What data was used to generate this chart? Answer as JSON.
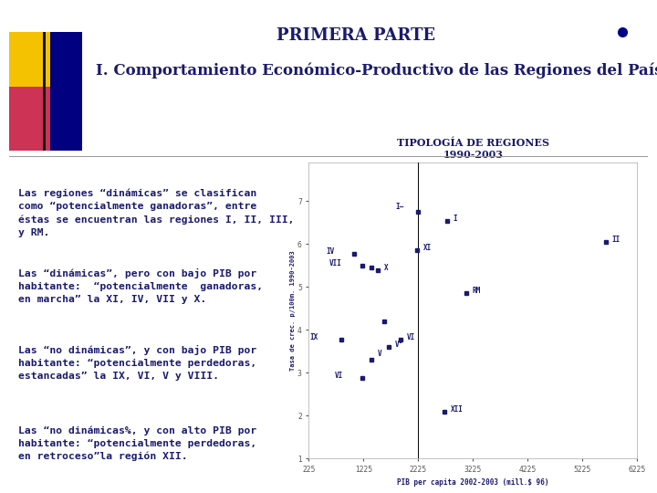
{
  "title_main": "PRIMERA PARTE",
  "title_sub": "I. Comportamiento Económico-Productivo de las Regiones del País",
  "scatter_title_line1": "TIPOLOGÍA DE REGIONES",
  "scatter_title_line2": "1990-2003",
  "xlabel": "PIB per capita 2002-2003 (mill.$ 96)",
  "ylabel": "Tasa de crec. p/100m. 1990-2003",
  "xlim": [
    225,
    6225
  ],
  "ylim": [
    1.0,
    7.9
  ],
  "xticks": [
    225,
    1225,
    2225,
    3225,
    4225,
    5225,
    6225
  ],
  "yticks": [
    1.0,
    2.0,
    3.0,
    4.0,
    5.0,
    6.0,
    7.0
  ],
  "vline_x": 2225,
  "dot_color": "#1a1a6e",
  "text_color": "#1a1a6e",
  "background_color": "#ffffff",
  "text_paragraphs": [
    "Las regiones “dinámicas” se clasifican\ncomo “potencialmente ganadoras”, entre\néstas se encuentran las regiones I, II, III,\ny RM.",
    "Las “dinámicas”, pero con bajo PIB por\nhabitante:  “potencialmente  ganadoras,\nen marcha” la XI, IV, VII y X.",
    "Las “no dinámicas”, y con bajo PIB por\nhabitante: “potencialmente perdedoras,\nestancadas” la IX, VI, V y VIII.",
    "Las “no dinámicas%, y con alto PIB por\nhabitante: “potencialmente perdedoras,\nen retroceso”la región XII."
  ],
  "scatter_data": [
    [
      2220,
      6.75,
      "I–",
      -18,
      2
    ],
    [
      2750,
      6.55,
      "I",
      5,
      0
    ],
    [
      5650,
      6.05,
      "II",
      5,
      0
    ],
    [
      2200,
      5.85,
      "XI",
      5,
      0
    ],
    [
      1050,
      5.78,
      "IV",
      -22,
      0
    ],
    [
      1200,
      5.5,
      "VII",
      -26,
      0
    ],
    [
      1370,
      5.45,
      "",
      5,
      0
    ],
    [
      1480,
      5.4,
      "X",
      5,
      0
    ],
    [
      3100,
      4.85,
      "RM",
      5,
      0
    ],
    [
      1600,
      4.2,
      "",
      5,
      0
    ],
    [
      820,
      3.78,
      "IX",
      -25,
      0
    ],
    [
      1900,
      3.78,
      "VI",
      5,
      0
    ],
    [
      1370,
      3.3,
      "V",
      5,
      3
    ],
    [
      1200,
      2.88,
      "VI",
      -22,
      0
    ],
    [
      2700,
      2.1,
      "XII",
      5,
      0
    ],
    [
      1680,
      3.6,
      "V°",
      5,
      0
    ]
  ]
}
